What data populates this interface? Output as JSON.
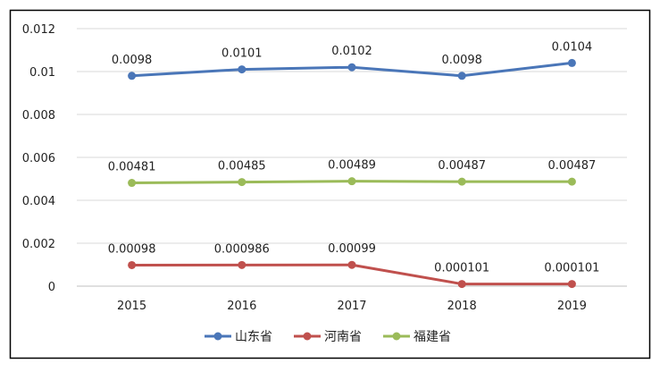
{
  "chart_data": {
    "type": "line",
    "title": "",
    "xlabel": "",
    "ylabel": "",
    "categories": [
      "2015",
      "2016",
      "2017",
      "2018",
      "2019"
    ],
    "ylim": [
      0,
      0.012
    ],
    "yticks": [
      "0",
      "0.002",
      "0.004",
      "0.006",
      "0.008",
      "0.01",
      "0.012"
    ],
    "grid": true,
    "legend_position": "bottom",
    "series": [
      {
        "name": "山东省",
        "color": "#4a76b8",
        "values": [
          0.0098,
          0.0101,
          0.0102,
          0.0098,
          0.0104
        ],
        "labels": [
          "0.0098",
          "0.0101",
          "0.0102",
          "0.0098",
          "0.0104"
        ]
      },
      {
        "name": "河南省",
        "color": "#c0504d",
        "values": [
          0.00098,
          0.000986,
          0.00099,
          0.000101,
          0.000101
        ],
        "labels": [
          "0.00098",
          "0.000986",
          "0.00099",
          "0.000101",
          "0.000101"
        ]
      },
      {
        "name": "福建省",
        "color": "#9bbb59",
        "values": [
          0.00481,
          0.00485,
          0.00489,
          0.00487,
          0.00487
        ],
        "labels": [
          "0.00481",
          "0.00485",
          "0.00489",
          "0.00487",
          "0.00487"
        ]
      }
    ]
  }
}
